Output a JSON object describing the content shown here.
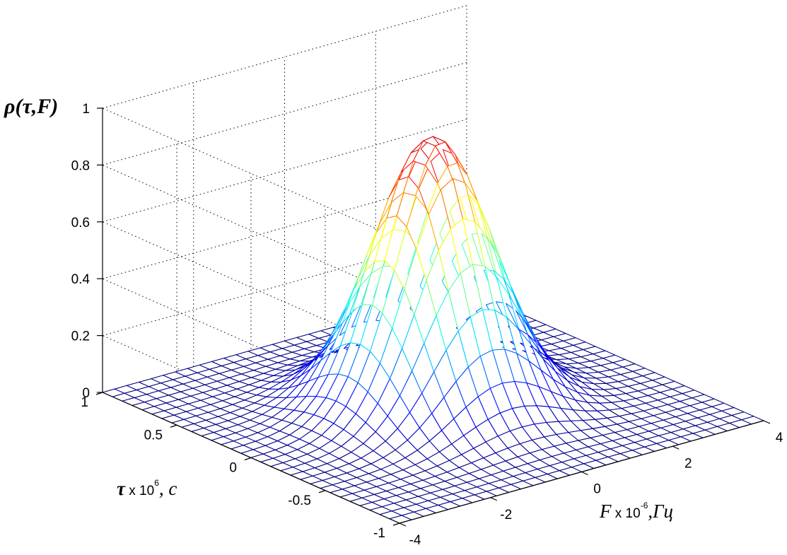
{
  "chart_data": {
    "type": "surface-mesh",
    "z_label": {
      "text": "ρ(τ,F)"
    },
    "y_label": {
      "symbol": "τ",
      "mult": " x 10",
      "exp": "6",
      "unit": ", c"
    },
    "x_label": {
      "symbol": "F",
      "mult": " x 10",
      "exp": "-6",
      "unit": ",Гц"
    },
    "z_ticks": [
      "0",
      "0.2",
      "0.4",
      "0.6",
      "0.8",
      "1"
    ],
    "y_ticks": [
      "-1",
      "-0.5",
      "0",
      "0.5",
      "1"
    ],
    "x_ticks": [
      "-4",
      "-2",
      "0",
      "2",
      "4"
    ],
    "xlim": [
      -4,
      4
    ],
    "ylim": [
      -1,
      1
    ],
    "zlim": [
      0,
      1
    ],
    "grid": true,
    "colormap": "jet",
    "surface": {
      "peak_value": 0.95,
      "peak_at": {
        "F": 0,
        "tau": 0
      },
      "grid_points": 31
    }
  }
}
